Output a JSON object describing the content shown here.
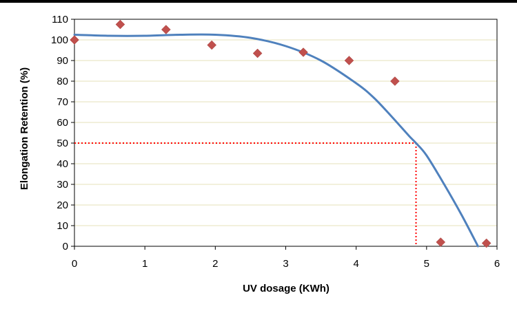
{
  "chart_data": {
    "type": "scatter",
    "title": "",
    "xlabel": "UV dosage (KWh)",
    "ylabel": "Elongation Retention (%)",
    "xlim": [
      0,
      6
    ],
    "ylim": [
      0,
      110
    ],
    "x_ticks": [
      0,
      1,
      2,
      3,
      4,
      5,
      6
    ],
    "y_ticks": [
      0,
      10,
      20,
      30,
      40,
      50,
      60,
      70,
      80,
      90,
      100,
      110
    ],
    "grid": "horizontal",
    "legend": "none",
    "series": [
      {
        "kind": "scatter",
        "marker": "diamond",
        "color": "#c0504d",
        "x": [
          0,
          0.65,
          1.3,
          1.95,
          2.6,
          3.25,
          3.9,
          4.55,
          5.2,
          5.85
        ],
        "y": [
          100,
          107.5,
          105,
          97.5,
          93.5,
          94,
          90,
          80,
          2,
          1.5
        ]
      },
      {
        "kind": "fit-line",
        "color": "#4f81bd",
        "x": [
          0,
          0.5,
          1,
          1.5,
          2,
          2.5,
          3,
          3.5,
          4,
          4.25,
          4.5,
          4.75,
          4.85,
          5,
          5.25,
          5.5,
          5.73
        ],
        "y": [
          102.5,
          102,
          102,
          102.5,
          102.5,
          101,
          97,
          90,
          79,
          72,
          63,
          53.5,
          50,
          44,
          30,
          15,
          0
        ]
      }
    ],
    "reference_lines": {
      "color": "#ff0000",
      "x": 4.85,
      "y": 50
    }
  }
}
